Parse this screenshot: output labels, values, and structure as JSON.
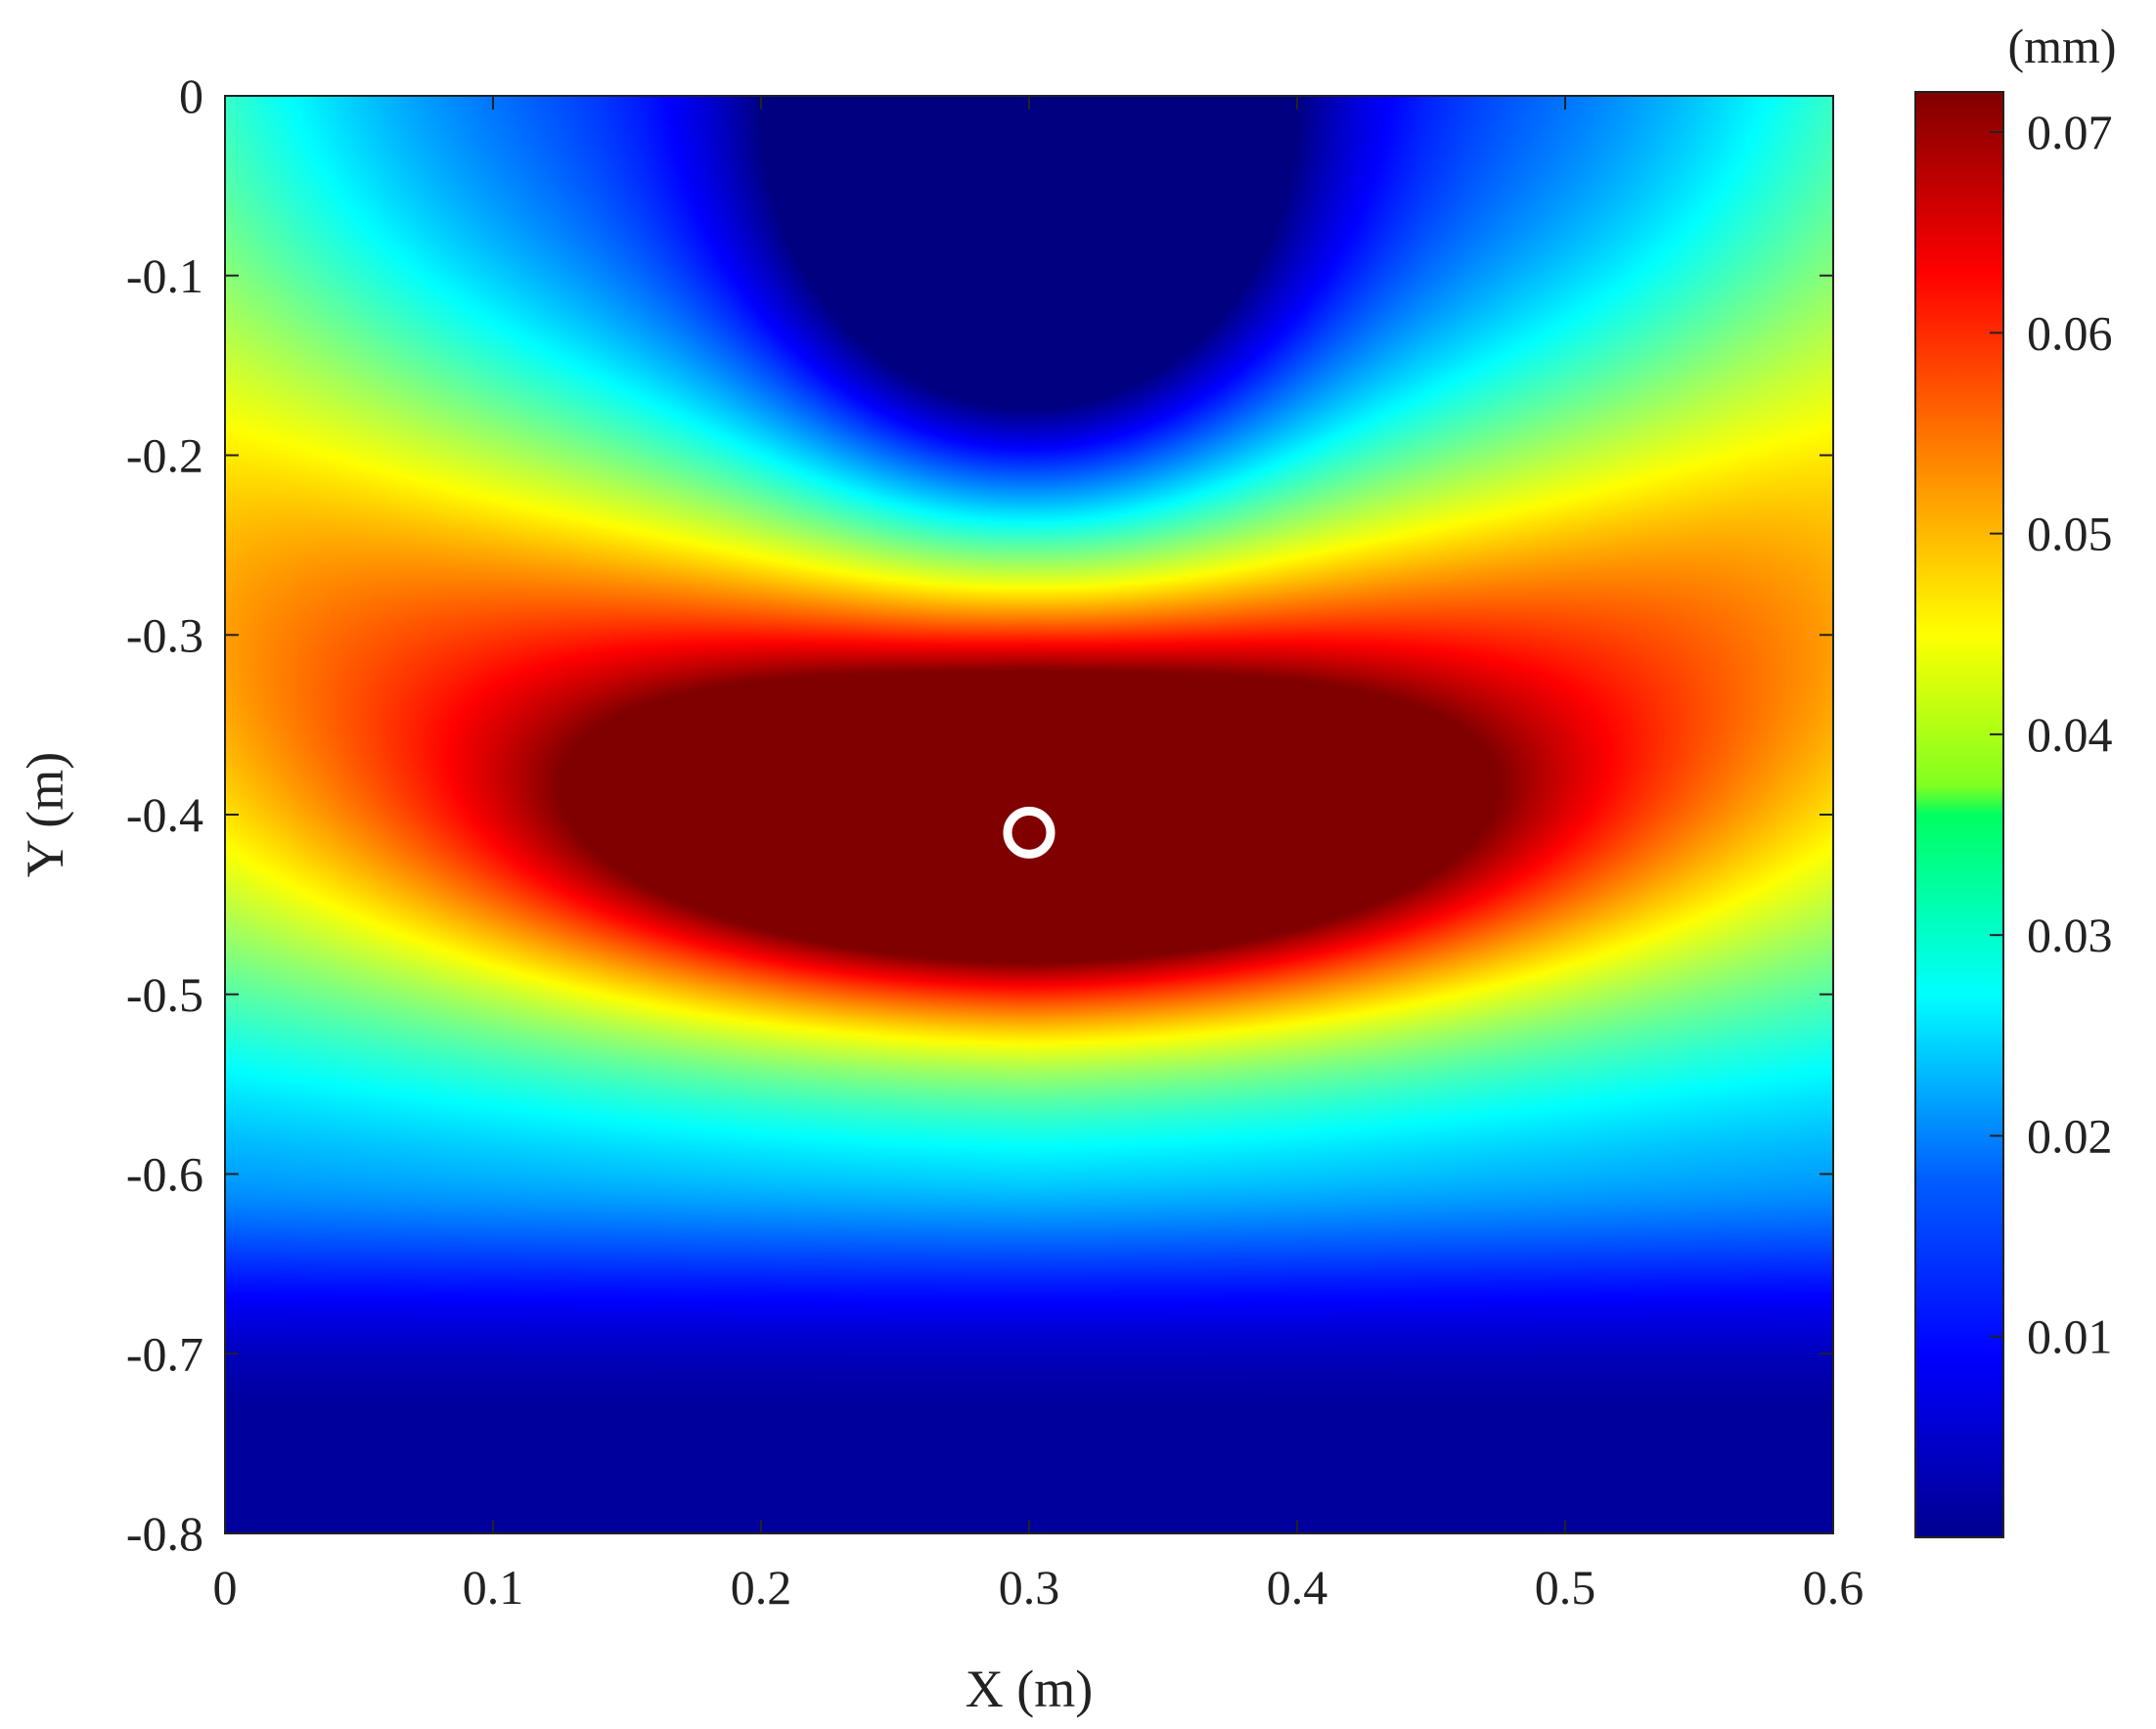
{
  "chart_data": {
    "type": "heatmap",
    "xlabel": "X (m)",
    "ylabel": "Y (m)",
    "xlim": [
      0,
      0.6
    ],
    "ylim": [
      -0.8,
      0
    ],
    "xticks": [
      "0",
      "0.1",
      "0.2",
      "0.3",
      "0.4",
      "0.5",
      "0.6"
    ],
    "yticks": [
      "0",
      "-0.1",
      "-0.2",
      "-0.3",
      "-0.4",
      "-0.5",
      "-0.6",
      "-0.7",
      "-0.8"
    ],
    "colormap": "jet",
    "colorbar": {
      "unit": "(mm)",
      "range": [
        0,
        0.072
      ],
      "ticks": [
        "0.01",
        "0.02",
        "0.03",
        "0.04",
        "0.05",
        "0.06",
        "0.07"
      ]
    },
    "peak": {
      "x": 0.3,
      "y": -0.41,
      "value": 0.071
    },
    "marker": {
      "shape": "circle",
      "color": "#ffffff",
      "x": 0.3,
      "y": -0.41
    },
    "grid": false
  }
}
